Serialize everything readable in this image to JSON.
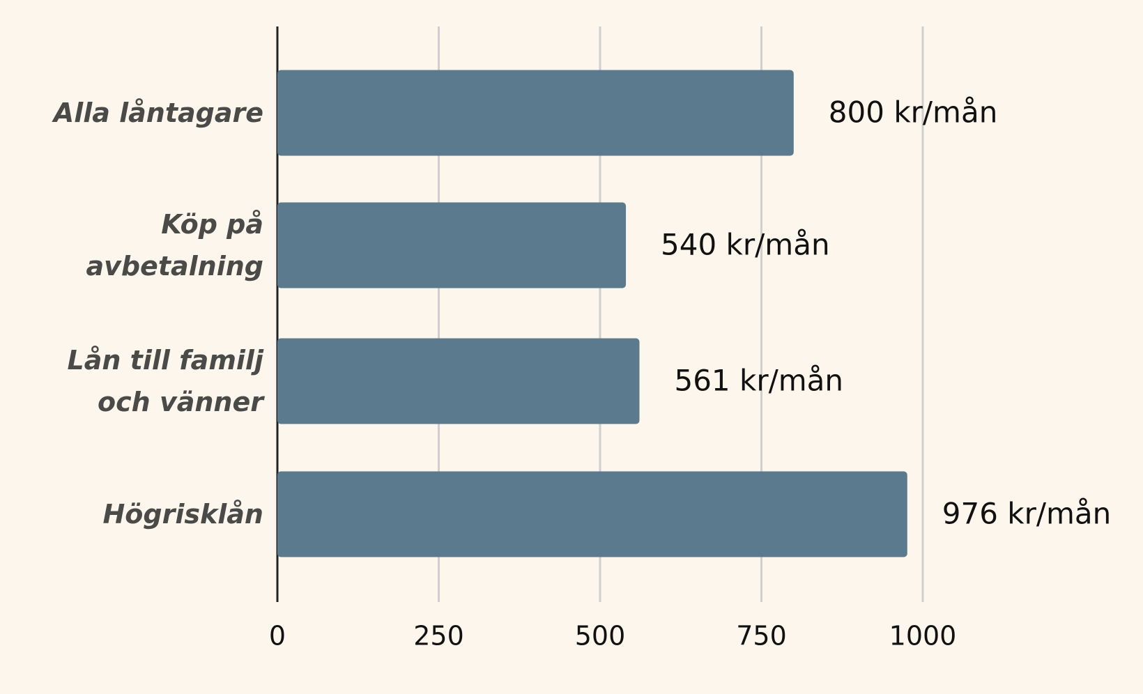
{
  "chart_data": {
    "type": "bar",
    "orientation": "horizontal",
    "categories": [
      "Alla låntagare",
      "Köp på avbetalning",
      "Lån till familj och vänner",
      "Högrisklån"
    ],
    "values": [
      800,
      540,
      561,
      976
    ],
    "value_labels": [
      "800 kr/mån",
      "540 kr/mån",
      "561 kr/mån",
      "976 kr/mån"
    ],
    "color": "#5c7a8e",
    "xlim": [
      0,
      1000
    ],
    "xticks": [
      0,
      250,
      500,
      750,
      1000
    ],
    "grid": true
  }
}
